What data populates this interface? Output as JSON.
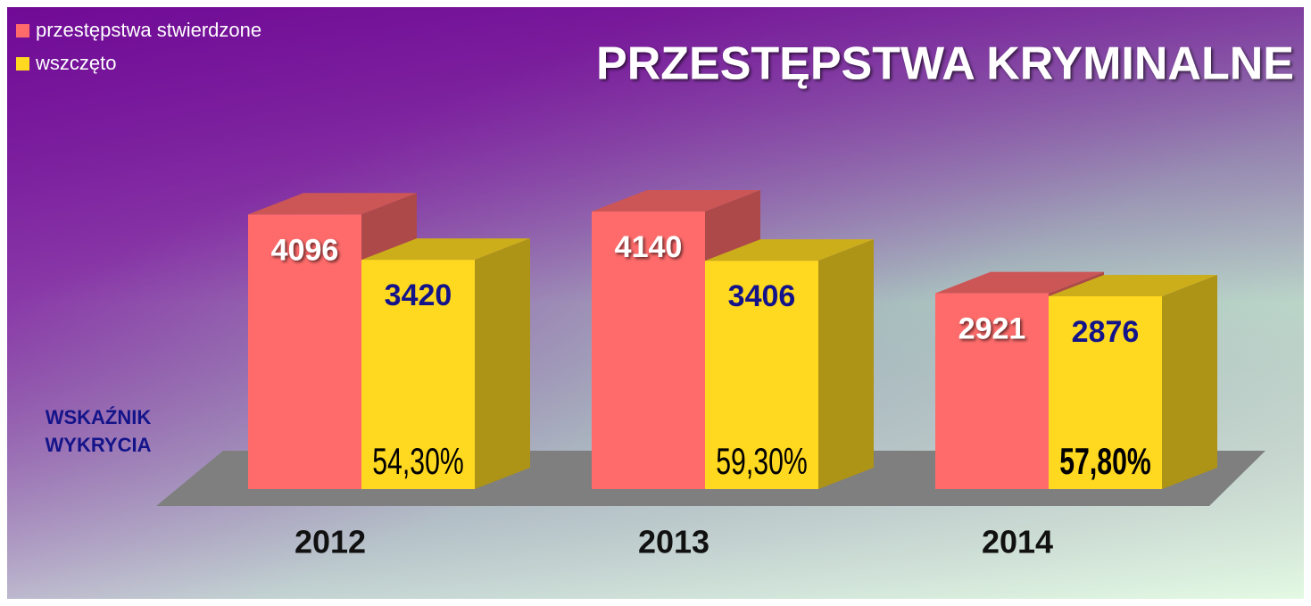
{
  "chart_data": {
    "type": "bar3d",
    "title": "PRZESTĘPSTWA KRYMINALNE",
    "categories": [
      "2012",
      "2013",
      "2014"
    ],
    "series": [
      {
        "name": "przestępstwa stwierdzone",
        "color": "#ff6b6b",
        "values": [
          4096,
          4140,
          2921
        ]
      },
      {
        "name": "wszczęto",
        "color": "#ffd820",
        "values": [
          3420,
          3406,
          2876
        ]
      }
    ],
    "detection_rate": {
      "label_lines": [
        "WSKAŹNIK",
        "WYKRYCIA"
      ],
      "values": [
        54.3,
        59.3,
        57.8
      ],
      "value_labels": [
        "54,30%",
        "59,30%",
        "57,80%"
      ],
      "bold": [
        false,
        false,
        true
      ]
    },
    "legend": "top-left"
  }
}
